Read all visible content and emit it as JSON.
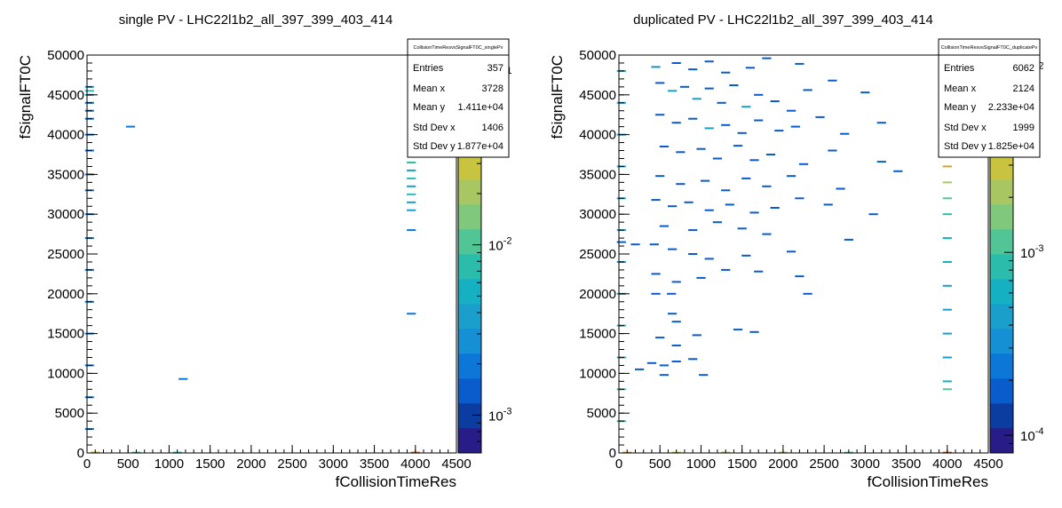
{
  "chart_data": [
    {
      "type": "heatmap",
      "title": "single PV - LHC22l1b2_all_397_399_403_414",
      "xlabel": "fCollisionTimeRes",
      "ylabel": "fSignalFT0C",
      "xlim": [
        0,
        4500
      ],
      "ylim": [
        0,
        50000
      ],
      "x_ticks": [
        "0",
        "500",
        "1000",
        "1500",
        "2000",
        "2500",
        "3000",
        "3500",
        "4000",
        "4500"
      ],
      "y_ticks": [
        "0",
        "5000",
        "10000",
        "15000",
        "20000",
        "25000",
        "30000",
        "35000",
        "40000",
        "45000",
        "50000"
      ],
      "z_scale": "log",
      "z_range": [
        0.0006,
        0.13
      ],
      "z_tick_labels": [
        {
          "value": 0.001,
          "base": "10",
          "exp": "-3"
        },
        {
          "value": 0.01,
          "base": "10",
          "exp": "-2"
        },
        {
          "value": 0.1,
          "base": "10",
          "exp": "-1"
        }
      ],
      "stats": {
        "name": "CollisionTimeResvsSignalFT0C_singlePv",
        "rows": [
          {
            "label": "Entries",
            "value": "357"
          },
          {
            "label": "Mean x",
            "value": "3728"
          },
          {
            "label": "Mean y",
            "value": "1.411e+04"
          },
          {
            "label": "Std Dev x",
            "value": "1406"
          },
          {
            "label": "Std Dev y",
            "value": "1.877e+04"
          }
        ]
      },
      "cells": [
        {
          "x": 30,
          "y": 46000,
          "z": 0.004
        },
        {
          "x": 30,
          "y": 45500,
          "z": 0.008
        },
        {
          "x": 30,
          "y": 45000,
          "z": 0.004
        },
        {
          "x": 30,
          "y": 44000,
          "z": 0.002
        },
        {
          "x": 30,
          "y": 43000,
          "z": 0.002
        },
        {
          "x": 30,
          "y": 42000,
          "z": 0.002
        },
        {
          "x": 30,
          "y": 40000,
          "z": 0.002
        },
        {
          "x": 30,
          "y": 38000,
          "z": 0.002
        },
        {
          "x": 30,
          "y": 35000,
          "z": 0.002
        },
        {
          "x": 30,
          "y": 33000,
          "z": 0.002
        },
        {
          "x": 30,
          "y": 30000,
          "z": 0.002
        },
        {
          "x": 30,
          "y": 27000,
          "z": 0.002
        },
        {
          "x": 30,
          "y": 23000,
          "z": 0.002
        },
        {
          "x": 30,
          "y": 19000,
          "z": 0.002
        },
        {
          "x": 30,
          "y": 15000,
          "z": 0.002
        },
        {
          "x": 30,
          "y": 11000,
          "z": 0.002
        },
        {
          "x": 30,
          "y": 7000,
          "z": 0.002
        },
        {
          "x": 30,
          "y": 3000,
          "z": 0.002
        },
        {
          "x": 530,
          "y": 41000,
          "z": 0.002
        },
        {
          "x": 1170,
          "y": 9300,
          "z": 0.002
        },
        {
          "x": 3950,
          "y": 36500,
          "z": 0.008
        },
        {
          "x": 3950,
          "y": 35500,
          "z": 0.004
        },
        {
          "x": 3950,
          "y": 34500,
          "z": 0.008
        },
        {
          "x": 3950,
          "y": 33500,
          "z": 0.004
        },
        {
          "x": 3950,
          "y": 32500,
          "z": 0.008
        },
        {
          "x": 3950,
          "y": 31500,
          "z": 0.004
        },
        {
          "x": 3950,
          "y": 30500,
          "z": 0.004
        },
        {
          "x": 3950,
          "y": 28000,
          "z": 0.002
        },
        {
          "x": 3950,
          "y": 17500,
          "z": 0.002
        },
        {
          "x": 100,
          "y": 50,
          "z": 0.05
        },
        {
          "x": 600,
          "y": 50,
          "z": 0.01
        },
        {
          "x": 1100,
          "y": 50,
          "z": 0.008
        },
        {
          "x": 4000,
          "y": 50,
          "z": 0.1
        }
      ]
    },
    {
      "type": "heatmap",
      "title": "duplicated PV - LHC22l1b2_all_397_399_403_414",
      "xlabel": "fCollisionTimeRes",
      "ylabel": "fSignalFT0C",
      "xlim": [
        0,
        4500
      ],
      "ylim": [
        0,
        50000
      ],
      "x_ticks": [
        "0",
        "500",
        "1000",
        "1500",
        "2000",
        "2500",
        "3000",
        "3500",
        "4000",
        "4500"
      ],
      "y_ticks": [
        "0",
        "5000",
        "10000",
        "15000",
        "20000",
        "25000",
        "30000",
        "35000",
        "40000",
        "45000",
        "50000"
      ],
      "z_scale": "log",
      "z_range": [
        8e-05,
        0.012
      ],
      "z_tick_labels": [
        {
          "value": 0.0001,
          "base": "10",
          "exp": "-4"
        },
        {
          "value": 0.001,
          "base": "10",
          "exp": "-3"
        },
        {
          "value": 0.01,
          "base": "10",
          "exp": "-2"
        }
      ],
      "stats": {
        "name": "CollisionTimeResvsSignalFT0C_duplicatePv",
        "rows": [
          {
            "label": "Entries",
            "value": "6062"
          },
          {
            "label": "Mean x",
            "value": "2124"
          },
          {
            "label": "Mean y",
            "value": "2.233e+04"
          },
          {
            "label": "Std Dev x",
            "value": "1999"
          },
          {
            "label": "Std Dev y",
            "value": "1.825e+04"
          }
        ]
      },
      "cells": [
        {
          "x": 450,
          "y": 48500,
          "z": 0.0003
        },
        {
          "x": 700,
          "y": 49000,
          "z": 0.0002
        },
        {
          "x": 900,
          "y": 48200,
          "z": 0.0002
        },
        {
          "x": 1100,
          "y": 49200,
          "z": 0.0002
        },
        {
          "x": 1300,
          "y": 47800,
          "z": 0.0002
        },
        {
          "x": 1600,
          "y": 48400,
          "z": 0.0002
        },
        {
          "x": 1800,
          "y": 49600,
          "z": 0.0002
        },
        {
          "x": 2200,
          "y": 48900,
          "z": 0.0002
        },
        {
          "x": 2600,
          "y": 46800,
          "z": 0.0002
        },
        {
          "x": 3000,
          "y": 45300,
          "z": 0.0002
        },
        {
          "x": 500,
          "y": 46500,
          "z": 0.0002
        },
        {
          "x": 650,
          "y": 45500,
          "z": 0.0004
        },
        {
          "x": 800,
          "y": 46000,
          "z": 0.0002
        },
        {
          "x": 950,
          "y": 44500,
          "z": 0.0004
        },
        {
          "x": 1100,
          "y": 45800,
          "z": 0.0002
        },
        {
          "x": 1250,
          "y": 44000,
          "z": 0.0002
        },
        {
          "x": 1400,
          "y": 46200,
          "z": 0.0002
        },
        {
          "x": 1550,
          "y": 43500,
          "z": 0.0004
        },
        {
          "x": 1700,
          "y": 45000,
          "z": 0.0002
        },
        {
          "x": 1900,
          "y": 44200,
          "z": 0.0002
        },
        {
          "x": 2100,
          "y": 43000,
          "z": 0.0002
        },
        {
          "x": 2300,
          "y": 45600,
          "z": 0.0002
        },
        {
          "x": 500,
          "y": 42500,
          "z": 0.0002
        },
        {
          "x": 700,
          "y": 41500,
          "z": 0.0002
        },
        {
          "x": 900,
          "y": 42000,
          "z": 0.0002
        },
        {
          "x": 1100,
          "y": 40800,
          "z": 0.0004
        },
        {
          "x": 1300,
          "y": 41200,
          "z": 0.0002
        },
        {
          "x": 1500,
          "y": 40200,
          "z": 0.0002
        },
        {
          "x": 1700,
          "y": 41800,
          "z": 0.0002
        },
        {
          "x": 1950,
          "y": 40500,
          "z": 0.0002
        },
        {
          "x": 2150,
          "y": 41000,
          "z": 0.0002
        },
        {
          "x": 2450,
          "y": 42200,
          "z": 0.0002
        },
        {
          "x": 2750,
          "y": 40100,
          "z": 0.0002
        },
        {
          "x": 3200,
          "y": 41500,
          "z": 0.0002
        },
        {
          "x": 550,
          "y": 38500,
          "z": 0.0002
        },
        {
          "x": 750,
          "y": 37800,
          "z": 0.0002
        },
        {
          "x": 1000,
          "y": 38200,
          "z": 0.0002
        },
        {
          "x": 1200,
          "y": 37000,
          "z": 0.0002
        },
        {
          "x": 1450,
          "y": 38600,
          "z": 0.0002
        },
        {
          "x": 1650,
          "y": 36800,
          "z": 0.0002
        },
        {
          "x": 1850,
          "y": 37500,
          "z": 0.0002
        },
        {
          "x": 2250,
          "y": 36300,
          "z": 0.0002
        },
        {
          "x": 2600,
          "y": 38000,
          "z": 0.0002
        },
        {
          "x": 3200,
          "y": 36600,
          "z": 0.0002
        },
        {
          "x": 500,
          "y": 34800,
          "z": 0.0002
        },
        {
          "x": 750,
          "y": 33800,
          "z": 0.0002
        },
        {
          "x": 1050,
          "y": 34200,
          "z": 0.0002
        },
        {
          "x": 1300,
          "y": 33000,
          "z": 0.0002
        },
        {
          "x": 1550,
          "y": 34500,
          "z": 0.0002
        },
        {
          "x": 1800,
          "y": 33500,
          "z": 0.0002
        },
        {
          "x": 2100,
          "y": 34800,
          "z": 0.0002
        },
        {
          "x": 2700,
          "y": 33200,
          "z": 0.0002
        },
        {
          "x": 3400,
          "y": 35400,
          "z": 0.0002
        },
        {
          "x": 450,
          "y": 31800,
          "z": 0.0002
        },
        {
          "x": 650,
          "y": 31000,
          "z": 0.0002
        },
        {
          "x": 850,
          "y": 31500,
          "z": 0.0002
        },
        {
          "x": 1100,
          "y": 30500,
          "z": 0.0002
        },
        {
          "x": 1350,
          "y": 31200,
          "z": 0.0002
        },
        {
          "x": 1650,
          "y": 30200,
          "z": 0.0002
        },
        {
          "x": 1900,
          "y": 30800,
          "z": 0.0002
        },
        {
          "x": 2200,
          "y": 32000,
          "z": 0.0002
        },
        {
          "x": 2550,
          "y": 31200,
          "z": 0.0002
        },
        {
          "x": 3100,
          "y": 30000,
          "z": 0.0002
        },
        {
          "x": 550,
          "y": 28500,
          "z": 0.0002
        },
        {
          "x": 900,
          "y": 28000,
          "z": 0.0002
        },
        {
          "x": 1200,
          "y": 29000,
          "z": 0.0002
        },
        {
          "x": 1500,
          "y": 28200,
          "z": 0.0002
        },
        {
          "x": 1800,
          "y": 27500,
          "z": 0.0002
        },
        {
          "x": 2800,
          "y": 26800,
          "z": 0.0002
        },
        {
          "x": 30,
          "y": 26500,
          "z": 0.0002
        },
        {
          "x": 200,
          "y": 26200,
          "z": 0.0002
        },
        {
          "x": 430,
          "y": 26200,
          "z": 0.0002
        },
        {
          "x": 650,
          "y": 25600,
          "z": 0.0002
        },
        {
          "x": 900,
          "y": 25000,
          "z": 0.0002
        },
        {
          "x": 1100,
          "y": 24400,
          "z": 0.0002
        },
        {
          "x": 1550,
          "y": 24800,
          "z": 0.0002
        },
        {
          "x": 2100,
          "y": 25300,
          "z": 0.0002
        },
        {
          "x": 450,
          "y": 22500,
          "z": 0.0002
        },
        {
          "x": 700,
          "y": 21500,
          "z": 0.0002
        },
        {
          "x": 1000,
          "y": 22000,
          "z": 0.0002
        },
        {
          "x": 1300,
          "y": 23000,
          "z": 0.0002
        },
        {
          "x": 1700,
          "y": 22800,
          "z": 0.0002
        },
        {
          "x": 2200,
          "y": 22200,
          "z": 0.0002
        },
        {
          "x": 450,
          "y": 20000,
          "z": 0.0002
        },
        {
          "x": 640,
          "y": 20000,
          "z": 0.0002
        },
        {
          "x": 2300,
          "y": 20000,
          "z": 0.0002
        },
        {
          "x": 650,
          "y": 17500,
          "z": 0.0002
        },
        {
          "x": 700,
          "y": 16500,
          "z": 0.0002
        },
        {
          "x": 500,
          "y": 14500,
          "z": 0.0002
        },
        {
          "x": 700,
          "y": 13500,
          "z": 0.0002
        },
        {
          "x": 950,
          "y": 14800,
          "z": 0.0002
        },
        {
          "x": 1450,
          "y": 15500,
          "z": 0.0002
        },
        {
          "x": 1650,
          "y": 15200,
          "z": 0.0002
        },
        {
          "x": 400,
          "y": 11300,
          "z": 0.0002
        },
        {
          "x": 550,
          "y": 11000,
          "z": 0.0002
        },
        {
          "x": 700,
          "y": 11500,
          "z": 0.0002
        },
        {
          "x": 900,
          "y": 11800,
          "z": 0.0002
        },
        {
          "x": 250,
          "y": 10500,
          "z": 0.0002
        },
        {
          "x": 550,
          "y": 9800,
          "z": 0.0002
        },
        {
          "x": 1030,
          "y": 9800,
          "z": 0.0002
        },
        {
          "x": 30,
          "y": 48000,
          "z": 0.0004
        },
        {
          "x": 30,
          "y": 44000,
          "z": 0.0005
        },
        {
          "x": 30,
          "y": 40000,
          "z": 0.0004
        },
        {
          "x": 30,
          "y": 36000,
          "z": 0.0005
        },
        {
          "x": 30,
          "y": 32000,
          "z": 0.0004
        },
        {
          "x": 30,
          "y": 28000,
          "z": 0.0005
        },
        {
          "x": 30,
          "y": 24000,
          "z": 0.0004
        },
        {
          "x": 30,
          "y": 20000,
          "z": 0.0004
        },
        {
          "x": 30,
          "y": 16000,
          "z": 0.0006
        },
        {
          "x": 30,
          "y": 12000,
          "z": 0.0006
        },
        {
          "x": 30,
          "y": 8000,
          "z": 0.0008
        },
        {
          "x": 30,
          "y": 4000,
          "z": 0.0008
        },
        {
          "x": 4000,
          "y": 44000,
          "z": 0.0004
        },
        {
          "x": 4000,
          "y": 41000,
          "z": 0.0006
        },
        {
          "x": 4000,
          "y": 38000,
          "z": 0.004
        },
        {
          "x": 4000,
          "y": 36000,
          "z": 0.006
        },
        {
          "x": 4000,
          "y": 34000,
          "z": 0.002
        },
        {
          "x": 4000,
          "y": 32000,
          "z": 0.001
        },
        {
          "x": 4000,
          "y": 30000,
          "z": 0.0008
        },
        {
          "x": 4000,
          "y": 27000,
          "z": 0.0006
        },
        {
          "x": 4000,
          "y": 24000,
          "z": 0.0006
        },
        {
          "x": 4000,
          "y": 21000,
          "z": 0.0004
        },
        {
          "x": 4000,
          "y": 18000,
          "z": 0.0004
        },
        {
          "x": 4000,
          "y": 15000,
          "z": 0.0004
        },
        {
          "x": 4000,
          "y": 12000,
          "z": 0.0004
        },
        {
          "x": 4000,
          "y": 9000,
          "z": 0.0006
        },
        {
          "x": 4000,
          "y": 8000,
          "z": 0.001
        },
        {
          "x": 100,
          "y": 50,
          "z": 0.006
        },
        {
          "x": 700,
          "y": 50,
          "z": 0.003
        },
        {
          "x": 1300,
          "y": 50,
          "z": 0.002
        },
        {
          "x": 2000,
          "y": 50,
          "z": 0.002
        },
        {
          "x": 2800,
          "y": 50,
          "z": 0.001
        },
        {
          "x": 4000,
          "y": 50,
          "z": 0.01
        }
      ]
    }
  ]
}
